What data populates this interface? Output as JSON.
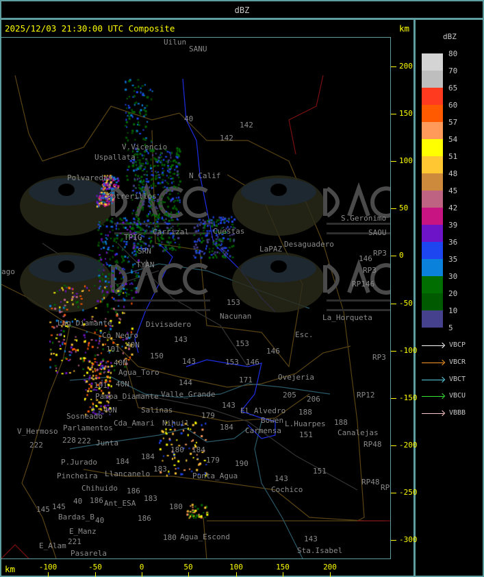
{
  "header": {
    "title": "dBZ"
  },
  "map": {
    "timestamp": "2025/12/03 21:30:00 UTC Composite",
    "unit_top": "km",
    "unit_bottom": "km",
    "x_ticks": [
      "-100",
      "-50",
      "0",
      "50",
      "100",
      "150",
      "200"
    ],
    "y_ticks": [
      "200",
      "150",
      "100",
      "50",
      "0",
      "-50",
      "-100",
      "-150",
      "-200",
      "-250",
      "-300"
    ],
    "watermark": {
      "logo_text": "DACC",
      "line1": "Dirección de Agricultura",
      "line2": "y Contingencias Climáticas",
      "url": "http://www.contingencias.mendoza.gov.ar"
    },
    "places": [
      "Uilun",
      "SANU",
      "142",
      "142",
      "40",
      "Polvaredas",
      "N_Calif",
      "Uspallata",
      "V.Vicencio",
      "Potrerillos",
      "Cuestas",
      "Carrizal",
      "TPIG",
      "SRN",
      "TYAN",
      "153",
      "Nacunan",
      "LaPAZ",
      "Desaguadero",
      "S.Geronimo",
      "SAOU",
      "RP3",
      "RP3",
      "146",
      "RP146",
      "Lag_Diamante",
      "Co_Negro",
      "Divisadero",
      "Esc.",
      "153",
      "146",
      "146",
      "153",
      "143",
      "40N",
      "101",
      "150",
      "40N",
      "Agua_Toro",
      "143",
      "40N",
      "Pampa_Diamante",
      "101",
      "171",
      "Ovejeria",
      "205",
      "206",
      "40N",
      "Salinas",
      "Valle_Grande",
      "144",
      "Cda_Amari",
      "Parlamentos",
      "179",
      "Sosneado",
      "Nihuil",
      "El_Alvedro",
      "Bowen",
      "L.Huarpes",
      "188",
      "184",
      "Carmensa",
      "143",
      "V_Hermoso",
      "228",
      "222",
      "222",
      "Junta",
      "151",
      "Canalejas",
      "188",
      "180",
      "184",
      "184",
      "184",
      "179",
      "190",
      "Punta_Agua",
      "P.Jurado",
      "Pincheira",
      "Llancanelo",
      "183",
      "151",
      "143",
      "Chihuido",
      "186",
      "186",
      "40",
      "Ant_ESA",
      "183",
      "Cochico",
      "145",
      "145",
      "Bardas_B",
      "180",
      "186",
      "E_Manz",
      "40",
      "221",
      "E_Alam",
      "Pasarela",
      "180",
      "Agua_Escond",
      "143",
      "Sta.Isabel",
      "RP12",
      "RP48",
      "RP48",
      "RP3",
      "La_Horqueta",
      "ago",
      "RP"
    ]
  },
  "legend": {
    "title": "dBZ",
    "levels": [
      {
        "label": "80",
        "color": "#d4d4d4"
      },
      {
        "label": "70",
        "color": "#bebebe"
      },
      {
        "label": "65",
        "color": "#ff3a1e"
      },
      {
        "label": "60",
        "color": "#ff5a00"
      },
      {
        "label": "57",
        "color": "#ff9a5a"
      },
      {
        "label": "54",
        "color": "#ffff00"
      },
      {
        "label": "51",
        "color": "#ffc832"
      },
      {
        "label": "48",
        "color": "#cd8a3c"
      },
      {
        "label": "45",
        "color": "#be6482"
      },
      {
        "label": "42",
        "color": "#c81482"
      },
      {
        "label": "39",
        "color": "#6e14c8"
      },
      {
        "label": "36",
        "color": "#1e46f0"
      },
      {
        "label": "35",
        "color": "#0a82dc"
      },
      {
        "label": "30",
        "color": "#006e00"
      },
      {
        "label": "20",
        "color": "#005a00"
      },
      {
        "label": "10",
        "color": "#46418c"
      }
    ],
    "min_label": "5",
    "radars": [
      {
        "label": "VBCP",
        "color": "#ffffff"
      },
      {
        "label": "VBCR",
        "color": "#ff9a1e"
      },
      {
        "label": "VBCT",
        "color": "#5ad2e6"
      },
      {
        "label": "VBCU",
        "color": "#32e632"
      },
      {
        "label": "VBBB",
        "color": "#ffc8c8"
      }
    ]
  }
}
